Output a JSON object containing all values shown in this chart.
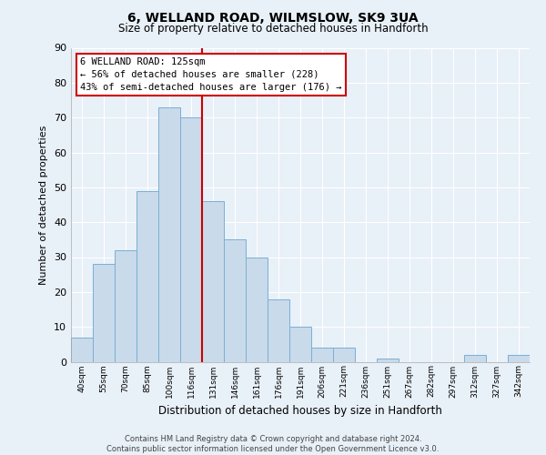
{
  "title": "6, WELLAND ROAD, WILMSLOW, SK9 3UA",
  "subtitle": "Size of property relative to detached houses in Handforth",
  "xlabel": "Distribution of detached houses by size in Handforth",
  "ylabel": "Number of detached properties",
  "bar_labels": [
    "40sqm",
    "55sqm",
    "70sqm",
    "85sqm",
    "100sqm",
    "116sqm",
    "131sqm",
    "146sqm",
    "161sqm",
    "176sqm",
    "191sqm",
    "206sqm",
    "221sqm",
    "236sqm",
    "251sqm",
    "267sqm",
    "282sqm",
    "297sqm",
    "312sqm",
    "327sqm",
    "342sqm"
  ],
  "bar_values": [
    7,
    28,
    32,
    49,
    73,
    70,
    46,
    35,
    30,
    18,
    10,
    4,
    4,
    0,
    1,
    0,
    0,
    0,
    2,
    0,
    2
  ],
  "bar_color": "#c9daea",
  "bar_edgecolor": "#7bafd4",
  "vline_x": 5.5,
  "vline_color": "#cc0000",
  "annotation_title": "6 WELLAND ROAD: 125sqm",
  "annotation_line1": "← 56% of detached houses are smaller (228)",
  "annotation_line2": "43% of semi-detached houses are larger (176) →",
  "annotation_box_edgecolor": "#cc0000",
  "annotation_box_facecolor": "#ffffff",
  "ylim": [
    0,
    90
  ],
  "yticks": [
    0,
    10,
    20,
    30,
    40,
    50,
    60,
    70,
    80,
    90
  ],
  "footer_line1": "Contains HM Land Registry data © Crown copyright and database right 2024.",
  "footer_line2": "Contains public sector information licensed under the Open Government Licence v3.0.",
  "bg_color": "#e8f0f8",
  "plot_bg_color": "#e8f0f8",
  "title_fontsize": 10,
  "subtitle_fontsize": 8.5,
  "ylabel_fontsize": 8,
  "xlabel_fontsize": 8.5
}
